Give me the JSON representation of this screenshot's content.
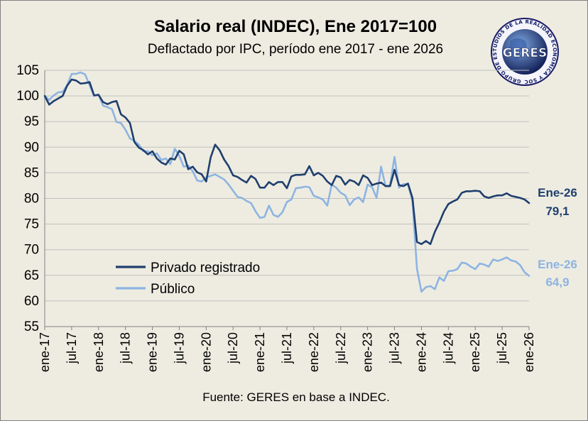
{
  "chart_data": {
    "type": "line",
    "title": "Salario real (INDEC), Ene 2017=100",
    "subtitle": "Deflactado por IPC, período ene 2017 - ene 2026",
    "source": "Fuente: GERES en base a INDEC.",
    "ylim": [
      55,
      105
    ],
    "yticks": [
      "105",
      "100",
      "95",
      "90",
      "85",
      "80",
      "75",
      "70",
      "65",
      "60",
      "55"
    ],
    "xtick_labels": [
      "ene-17",
      "jul-17",
      "ene-18",
      "jul-18",
      "ene-19",
      "jul-19",
      "ene-20",
      "jul-20",
      "ene-21",
      "jul-21",
      "ene-22",
      "jul-22",
      "ene-23",
      "jul-23",
      "ene-24",
      "jul-24",
      "ene-25",
      "jul-25",
      "ene-26"
    ],
    "series": [
      {
        "name": "Privado registrado",
        "color": "#1f3f6e",
        "end_label_month": "Ene-26",
        "end_label_value": "79,1",
        "values": [
          100,
          98.3,
          99,
          99.5,
          100,
          102,
          103.2,
          103,
          102.4,
          102.5,
          102.7,
          100.1,
          100.2,
          98.8,
          98.4,
          98.8,
          99,
          96.4,
          95.8,
          94.7,
          91,
          89.9,
          89.4,
          88.6,
          89.2,
          87.8,
          87,
          86.6,
          87.8,
          87.6,
          89.3,
          88.6,
          85.7,
          86.2,
          85.1,
          84.7,
          83.3,
          88,
          90.5,
          89.4,
          87.6,
          86.3,
          84.5,
          84.2,
          83.6,
          83.1,
          84.4,
          83.8,
          82.1,
          82.1,
          83.2,
          82.6,
          83.2,
          83.2,
          82,
          84.3,
          84.6,
          84.6,
          84.7,
          86.3,
          84.5,
          85,
          84.4,
          83.3,
          82.6,
          84.4,
          84.1,
          82.7,
          83.6,
          83.3,
          82.6,
          84.5,
          84,
          82.6,
          82.9,
          83.1,
          82.4,
          82.4,
          85.6,
          82.6,
          82.4,
          82.9,
          80.1,
          71.5,
          71.1,
          71.7,
          71.1,
          73.5,
          75.3,
          77.4,
          78.9,
          79.4,
          79.8,
          81.1,
          81.4,
          81.4,
          81.5,
          81.4,
          80.4,
          80.1,
          80.4,
          80.6,
          80.6,
          81,
          80.5,
          80.3,
          80.1,
          79.8,
          79.1
        ]
      },
      {
        "name": "Público",
        "color": "#8db4e2",
        "end_label_month": "Ene-26",
        "end_label_value": "64,9",
        "values": [
          100,
          99.2,
          100.1,
          100.7,
          100.8,
          102.1,
          104.3,
          104.3,
          104.6,
          104.2,
          102.1,
          100,
          100.3,
          98.1,
          97.8,
          97.4,
          94.9,
          94.7,
          93.4,
          91.7,
          91.2,
          90.5,
          89.2,
          89.2,
          88.4,
          88.8,
          87.5,
          87.8,
          86.7,
          89.7,
          88.3,
          86.2,
          86.4,
          85.3,
          83.5,
          83.3,
          84.1,
          84.4,
          84.7,
          84.2,
          83.7,
          82.7,
          81.5,
          80.3,
          80.1,
          79.5,
          79.1,
          77.5,
          76.2,
          76.4,
          78.6,
          76.8,
          76.4,
          77.3,
          79.3,
          79.8,
          82,
          82.1,
          82.3,
          82.2,
          80.5,
          80.2,
          79.8,
          78.6,
          82.7,
          82.1,
          81.1,
          80.6,
          78.7,
          79.8,
          80.2,
          79.3,
          82.7,
          82.2,
          80.1,
          86.2,
          82.4,
          82.6,
          88.1,
          82.1,
          82.8,
          82.8,
          79.4,
          66.3,
          61.8,
          62.7,
          62.9,
          62.3,
          64.6,
          63.9,
          65.8,
          65.9,
          66.2,
          67.5,
          67.3,
          66.7,
          66.2,
          67.3,
          67.1,
          66.7,
          68.1,
          67.8,
          68.1,
          68.5,
          67.9,
          67.7,
          67,
          65.6,
          64.9
        ]
      }
    ]
  },
  "logo": {
    "main_text": "GERES",
    "ring_text": "GRUPO DE ESTUDIOS DE LA REALIDAD ECONÓMICA Y SOCIAL"
  }
}
